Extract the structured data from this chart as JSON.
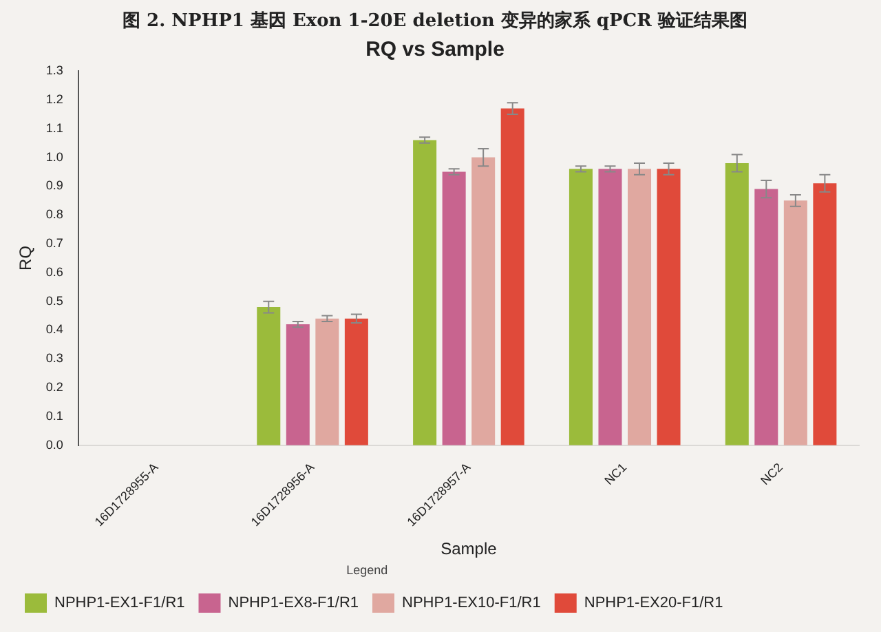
{
  "chart_data": {
    "type": "bar",
    "title": "图 2. NPHP1 基因 Exon 1-20E deletion 变异的家系 qPCR 验证结果图",
    "subtitle": "RQ vs Sample",
    "xlabel": "Sample",
    "ylabel": "RQ",
    "legend_title": "Legend",
    "categories": [
      "16D1728955-A",
      "16D1728956-A",
      "16D1728957-A",
      "NC1",
      "NC2"
    ],
    "series": [
      {
        "name": "NPHP1-EX1-F1/R1",
        "color": "#9bbb3b",
        "values": [
          0,
          0.48,
          1.06,
          0.96,
          0.98
        ],
        "errors": [
          null,
          0.02,
          0.01,
          0.01,
          0.03
        ]
      },
      {
        "name": "NPHP1-EX8-F1/R1",
        "color": "#c8648f",
        "values": [
          0,
          0.42,
          0.95,
          0.96,
          0.89
        ],
        "errors": [
          null,
          0.01,
          0.01,
          0.01,
          0.03
        ]
      },
      {
        "name": "NPHP1-EX10-F1/R1",
        "color": "#e0a8a0",
        "values": [
          0,
          0.44,
          1.0,
          0.96,
          0.85
        ],
        "errors": [
          null,
          0.01,
          0.03,
          0.02,
          0.02
        ]
      },
      {
        "name": "NPHP1-EX20-F1/R1",
        "color": "#e04a3a",
        "values": [
          0,
          0.44,
          1.17,
          0.96,
          0.91
        ],
        "errors": [
          null,
          0.015,
          0.02,
          0.02,
          0.03
        ]
      }
    ],
    "ylim": [
      0,
      1.3
    ],
    "yticks": [
      {
        "value": 0,
        "label": "0.0"
      },
      0.1,
      0.2,
      0.3,
      0.4,
      0.5,
      0.6,
      0.7,
      0.8,
      0.9,
      {
        "value": 1,
        "label": "1.0"
      },
      1.1,
      1.2,
      1.3
    ],
    "grid": false,
    "legend": "bottom"
  }
}
